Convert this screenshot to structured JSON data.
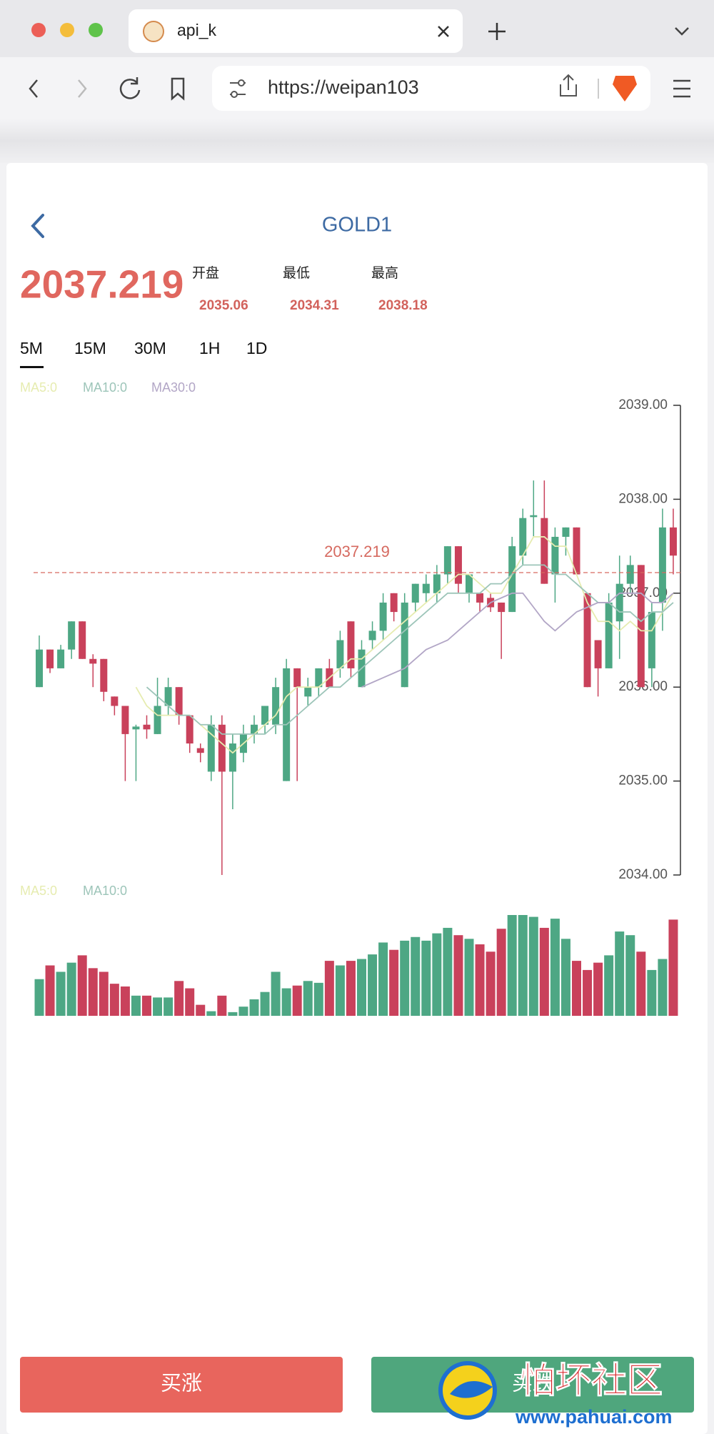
{
  "browser": {
    "tab_title": "api_k",
    "url": "https://weipan103"
  },
  "header": {
    "title": "GOLD1",
    "price": 2037.219,
    "stats": [
      {
        "label": "开盘",
        "value": 2035.06
      },
      {
        "label": "最低",
        "value": 2034.31
      },
      {
        "label": "最高",
        "value": 2038.18
      }
    ]
  },
  "periods": [
    "5M",
    "15M",
    "30M",
    "1H",
    "1D"
  ],
  "active_period": 0,
  "chart_data": {
    "type": "candlestick",
    "up_color": "#4da784",
    "down_color": "#c9415b",
    "open": [
      2036.0,
      2036.4,
      2036.2,
      2036.4,
      2036.7,
      2036.3,
      2036.3,
      2035.9,
      2035.8,
      2035.55,
      2035.6,
      2035.5,
      2035.8,
      2036.0,
      2035.7,
      2035.35,
      2035.1,
      2035.6,
      2035.1,
      2035.3,
      2035.5,
      2035.6,
      2035.6,
      2035.0,
      2036.2,
      2035.9,
      2036.0,
      2036.2,
      2036.2,
      2036.7,
      2036.0,
      2036.5,
      2036.6,
      2037.0,
      2036.0,
      2036.9,
      2037.0,
      2037.0,
      2037.2,
      2037.5,
      2037.0,
      2037.0,
      2036.95,
      2036.9,
      2036.8,
      2037.4,
      2037.81,
      2037.8,
      2037.2,
      2037.6,
      2037.7,
      2037.0,
      2036.5,
      2036.2,
      2036.7,
      2037.1,
      2037.3,
      2036.2,
      2036.9,
      2037.7
    ],
    "high": [
      2036.55,
      2036.4,
      2036.45,
      2036.7,
      2036.7,
      2036.35,
      2036.3,
      2035.9,
      2035.8,
      2035.6,
      2035.7,
      2036.1,
      2036.1,
      2036.0,
      2035.7,
      2035.4,
      2035.7,
      2035.7,
      2035.5,
      2035.6,
      2035.7,
      2035.8,
      2036.1,
      2036.3,
      2036.2,
      2036.1,
      2036.2,
      2036.3,
      2036.6,
      2036.7,
      2036.5,
      2036.7,
      2037.0,
      2037.0,
      2037.0,
      2037.1,
      2037.2,
      2037.3,
      2037.5,
      2037.5,
      2037.2,
      2037.0,
      2037.0,
      2036.9,
      2037.6,
      2037.9,
      2038.2,
      2038.2,
      2037.7,
      2037.7,
      2037.7,
      2037.0,
      2036.5,
      2037.0,
      2037.4,
      2037.4,
      2037.3,
      2036.9,
      2037.9,
      2037.9
    ],
    "low": [
      2036.0,
      2036.15,
      2036.2,
      2036.3,
      2036.3,
      2036.0,
      2035.85,
      2035.7,
      2035.0,
      2035.0,
      2035.45,
      2035.5,
      2035.7,
      2035.6,
      2035.3,
      2035.2,
      2035.0,
      2034.0,
      2034.7,
      2035.2,
      2035.4,
      2035.5,
      2035.5,
      2035.0,
      2035.0,
      2035.8,
      2035.9,
      2036.0,
      2036.1,
      2036.1,
      2036.0,
      2036.4,
      2036.5,
      2036.7,
      2036.0,
      2036.8,
      2036.9,
      2036.9,
      2037.1,
      2037.0,
      2036.9,
      2036.8,
      2036.8,
      2036.3,
      2036.8,
      2037.3,
      2037.6,
      2037.1,
      2036.9,
      2037.4,
      2037.2,
      2036.0,
      2035.9,
      2036.2,
      2036.3,
      2037.0,
      2036.0,
      2036.0,
      2036.6,
      2037.2
    ],
    "close": [
      2036.4,
      2036.2,
      2036.4,
      2036.7,
      2036.3,
      2036.25,
      2035.95,
      2035.8,
      2035.5,
      2035.58,
      2035.55,
      2035.8,
      2036.0,
      2035.7,
      2035.4,
      2035.3,
      2035.6,
      2035.1,
      2035.4,
      2035.5,
      2035.6,
      2035.8,
      2036.0,
      2036.2,
      2036.0,
      2036.0,
      2036.2,
      2036.0,
      2036.5,
      2036.2,
      2036.4,
      2036.6,
      2036.9,
      2036.8,
      2036.9,
      2037.1,
      2037.1,
      2037.2,
      2037.5,
      2037.1,
      2037.2,
      2036.9,
      2036.85,
      2036.8,
      2037.5,
      2037.8,
      2037.83,
      2037.1,
      2037.6,
      2037.7,
      2037.2,
      2036.0,
      2036.2,
      2036.9,
      2037.1,
      2037.3,
      2036.0,
      2036.8,
      2037.7,
      2037.4
    ],
    "ma": [
      {
        "name": "MA5:0",
        "color": "#e6ecb0",
        "values": [
          null,
          null,
          null,
          null,
          null,
          null,
          null,
          null,
          null,
          2036.0,
          2035.8,
          2035.7,
          2035.7,
          2035.7,
          2035.7,
          2035.6,
          2035.5,
          2035.4,
          2035.3,
          2035.4,
          2035.5,
          2035.6,
          2035.7,
          2035.9,
          2036.0,
          2036.0,
          2036.0,
          2036.1,
          2036.2,
          2036.3,
          2036.3,
          2036.4,
          2036.5,
          2036.6,
          2036.7,
          2036.8,
          2036.9,
          2037.0,
          2037.1,
          2037.2,
          2037.2,
          2037.1,
          2037.0,
          2037.0,
          2037.2,
          2037.4,
          2037.6,
          2037.6,
          2037.5,
          2037.5,
          2037.2,
          2036.9,
          2036.7,
          2036.7,
          2036.6,
          2036.7,
          2036.6,
          2036.6,
          2036.8,
          2037.0
        ]
      },
      {
        "name": "MA10:0",
        "color": "#9dc5b9",
        "values": [
          null,
          null,
          null,
          null,
          null,
          null,
          null,
          null,
          null,
          null,
          2036.0,
          2035.9,
          2035.8,
          2035.7,
          2035.7,
          2035.6,
          2035.6,
          2035.5,
          2035.5,
          2035.5,
          2035.5,
          2035.5,
          2035.6,
          2035.6,
          2035.7,
          2035.8,
          2035.9,
          2036.0,
          2036.0,
          2036.1,
          2036.2,
          2036.3,
          2036.4,
          2036.5,
          2036.6,
          2036.7,
          2036.8,
          2036.9,
          2037.0,
          2037.0,
          2037.0,
          2037.0,
          2037.1,
          2037.1,
          2037.2,
          2037.3,
          2037.3,
          2037.3,
          2037.2,
          2037.2,
          2037.1,
          2037.0,
          2036.9,
          2036.9,
          2036.8,
          2036.8,
          2036.7,
          2036.8,
          2036.8,
          2036.9
        ]
      },
      {
        "name": "MA30:0",
        "color": "#b2a6c6",
        "values": [
          null,
          null,
          null,
          null,
          null,
          null,
          null,
          null,
          null,
          null,
          null,
          null,
          null,
          null,
          null,
          null,
          null,
          null,
          null,
          null,
          null,
          null,
          null,
          null,
          null,
          null,
          null,
          null,
          null,
          null,
          2036.0,
          2036.05,
          2036.1,
          2036.15,
          2036.2,
          2036.3,
          2036.4,
          2036.45,
          2036.5,
          2036.6,
          2036.7,
          2036.8,
          2036.9,
          2036.95,
          2037.0,
          2037.0,
          2036.85,
          2036.7,
          2036.6,
          2036.7,
          2036.8,
          2036.85,
          2036.9,
          2036.9,
          2037.0,
          2037.0,
          2037.0,
          2036.9,
          2036.9,
          2037.0
        ]
      }
    ],
    "ylim": [
      2034,
      2039
    ],
    "yticks": [
      {
        "value": 2034,
        "label": "2034.00"
      },
      {
        "value": 2035,
        "label": "2035.00"
      },
      {
        "value": 2036,
        "label": "2036.00"
      },
      {
        "value": 2037,
        "label": "2037.00"
      },
      {
        "value": 2038,
        "label": "2038.00"
      },
      {
        "value": 2039,
        "label": "2039.00"
      }
    ],
    "last_price": 2037.219,
    "last_price_color": "#d66a60",
    "volume": {
      "legend": [
        "MA5:0",
        "MA10:0"
      ],
      "values": [
        40,
        55,
        48,
        58,
        66,
        52,
        48,
        35,
        32,
        22,
        22,
        20,
        20,
        38,
        30,
        12,
        5,
        22,
        4,
        10,
        18,
        26,
        48,
        30,
        33,
        38,
        36,
        60,
        55,
        60,
        62,
        67,
        80,
        72,
        82,
        86,
        82,
        90,
        96,
        88,
        84,
        78,
        70,
        95,
        110,
        110,
        108,
        96,
        106,
        84,
        60,
        50,
        58,
        66,
        92,
        88,
        70,
        50,
        62,
        105
      ]
    }
  },
  "buttons": [
    "买涨",
    "买跌"
  ],
  "watermark": {
    "title": "怕坏社区",
    "url": "www.pahuai.com"
  }
}
